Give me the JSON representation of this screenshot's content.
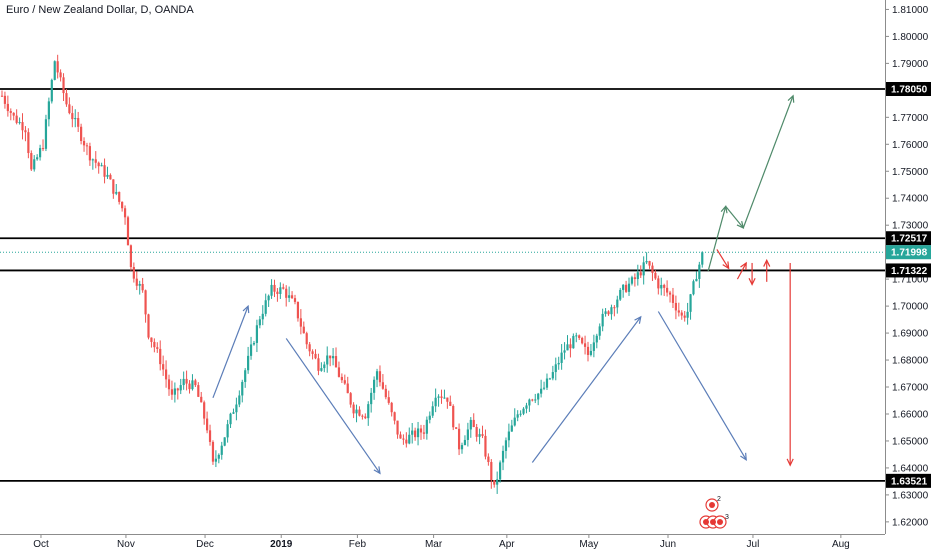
{
  "header": {
    "title": "Euro / New Zealand Dollar, D, OANDA"
  },
  "colors": {
    "up": "#26a69a",
    "down": "#ef5350",
    "level_line": "#000000",
    "current_line": "#26a69a",
    "arrow_blue": "#5b7db8",
    "arrow_green": "#4f8a6a",
    "arrow_red": "#e53935",
    "axis_bg": "#ffffff",
    "grid": "#f0f3fa"
  },
  "events": {
    "badge_top": "2",
    "badge_bottom": "3"
  },
  "chart_data": {
    "type": "candlestick",
    "title": "Euro / New Zealand Dollar, D, OANDA",
    "y_ticks": [
      1.62,
      1.63,
      1.64,
      1.65,
      1.66,
      1.67,
      1.68,
      1.69,
      1.7,
      1.71,
      1.72,
      1.73,
      1.74,
      1.75,
      1.76,
      1.77,
      1.78,
      1.79,
      1.8,
      1.81
    ],
    "y_tick_labels": [
      "1.62000",
      "1.63000",
      "1.64000",
      "1.65000",
      "1.66000",
      "1.67000",
      "1.68000",
      "1.69000",
      "1.70000",
      "1.71000",
      "1.72000",
      "1.73000",
      "1.74000",
      "1.75000",
      "1.76000",
      "1.77000",
      "1.78000",
      "1.79000",
      "1.80000",
      "1.81000"
    ],
    "ylim": [
      1.6155,
      1.8135
    ],
    "x_labels": [
      "Oct",
      "Nov",
      "Dec",
      "2019",
      "Feb",
      "Mar",
      "Apr",
      "May",
      "Jun",
      "Jul",
      "Aug"
    ],
    "horizontal_levels": [
      {
        "value": 1.7805,
        "label": "1.78050"
      },
      {
        "value": 1.72517,
        "label": "1.72517"
      },
      {
        "value": 1.71322,
        "label": "1.71322"
      },
      {
        "value": 1.63521,
        "label": "1.63521"
      }
    ],
    "current_price": {
      "value": 1.71998,
      "label": "1.71998"
    },
    "anchors": [
      {
        "x": 0,
        "y": 1.778
      },
      {
        "x": 4,
        "y": 1.77
      },
      {
        "x": 8,
        "y": 1.766
      },
      {
        "x": 10,
        "y": 1.75
      },
      {
        "x": 14,
        "y": 1.76
      },
      {
        "x": 18,
        "y": 1.791
      },
      {
        "x": 22,
        "y": 1.775
      },
      {
        "x": 30,
        "y": 1.756
      },
      {
        "x": 36,
        "y": 1.748
      },
      {
        "x": 42,
        "y": 1.734
      },
      {
        "x": 44,
        "y": 1.714
      },
      {
        "x": 48,
        "y": 1.705
      },
      {
        "x": 50,
        "y": 1.69
      },
      {
        "x": 54,
        "y": 1.68
      },
      {
        "x": 58,
        "y": 1.666
      },
      {
        "x": 62,
        "y": 1.672
      },
      {
        "x": 66,
        "y": 1.67
      },
      {
        "x": 70,
        "y": 1.655
      },
      {
        "x": 72,
        "y": 1.641
      },
      {
        "x": 76,
        "y": 1.652
      },
      {
        "x": 80,
        "y": 1.665
      },
      {
        "x": 84,
        "y": 1.68
      },
      {
        "x": 88,
        "y": 1.696
      },
      {
        "x": 92,
        "y": 1.706
      },
      {
        "x": 96,
        "y": 1.706
      },
      {
        "x": 100,
        "y": 1.7
      },
      {
        "x": 104,
        "y": 1.686
      },
      {
        "x": 108,
        "y": 1.678
      },
      {
        "x": 112,
        "y": 1.682
      },
      {
        "x": 116,
        "y": 1.672
      },
      {
        "x": 120,
        "y": 1.662
      },
      {
        "x": 124,
        "y": 1.66
      },
      {
        "x": 128,
        "y": 1.676
      },
      {
        "x": 132,
        "y": 1.663
      },
      {
        "x": 136,
        "y": 1.65
      },
      {
        "x": 140,
        "y": 1.652
      },
      {
        "x": 144,
        "y": 1.654
      },
      {
        "x": 148,
        "y": 1.668
      },
      {
        "x": 152,
        "y": 1.666
      },
      {
        "x": 156,
        "y": 1.648
      },
      {
        "x": 160,
        "y": 1.656
      },
      {
        "x": 164,
        "y": 1.65
      },
      {
        "x": 168,
        "y": 1.632
      },
      {
        "x": 172,
        "y": 1.65
      },
      {
        "x": 176,
        "y": 1.66
      },
      {
        "x": 180,
        "y": 1.666
      },
      {
        "x": 184,
        "y": 1.668
      },
      {
        "x": 188,
        "y": 1.675
      },
      {
        "x": 192,
        "y": 1.684
      },
      {
        "x": 196,
        "y": 1.688
      },
      {
        "x": 200,
        "y": 1.682
      },
      {
        "x": 204,
        "y": 1.694
      },
      {
        "x": 208,
        "y": 1.7
      },
      {
        "x": 212,
        "y": 1.706
      },
      {
        "x": 216,
        "y": 1.71
      },
      {
        "x": 220,
        "y": 1.716
      },
      {
        "x": 224,
        "y": 1.708
      },
      {
        "x": 228,
        "y": 1.704
      },
      {
        "x": 232,
        "y": 1.696
      },
      {
        "x": 234,
        "y": 1.698
      },
      {
        "x": 237,
        "y": 1.712
      },
      {
        "x": 239,
        "y": 1.719
      }
    ],
    "candle_count": 240,
    "projections": [
      {
        "color": "blue",
        "from": [
          72,
          1.666
        ],
        "to": [
          84,
          1.7
        ]
      },
      {
        "color": "blue",
        "from": [
          97,
          1.688
        ],
        "to": [
          129,
          1.638
        ]
      },
      {
        "color": "blue",
        "from": [
          181,
          1.642
        ],
        "to": [
          218,
          1.696
        ]
      },
      {
        "color": "blue",
        "from": [
          224,
          1.698
        ],
        "to": [
          254,
          1.643
        ]
      },
      {
        "color": "green",
        "from": [
          241,
          1.713
        ],
        "to": [
          247,
          1.737
        ]
      },
      {
        "color": "green",
        "from": [
          247,
          1.737
        ],
        "to": [
          253,
          1.729
        ]
      },
      {
        "color": "green",
        "from": [
          253,
          1.729
        ],
        "to": [
          270,
          1.778
        ]
      },
      {
        "color": "red",
        "from": [
          244,
          1.721
        ],
        "to": [
          248,
          1.714
        ]
      },
      {
        "color": "red",
        "from": [
          251,
          1.71
        ],
        "to": [
          254,
          1.716
        ]
      },
      {
        "color": "red",
        "from": [
          256,
          1.716
        ],
        "to": [
          256,
          1.708
        ]
      },
      {
        "color": "red",
        "from": [
          261,
          1.709
        ],
        "to": [
          261,
          1.717
        ]
      },
      {
        "color": "red",
        "from": [
          269,
          1.716
        ],
        "to": [
          269,
          1.641
        ]
      }
    ],
    "grid": false,
    "legend": "none"
  }
}
